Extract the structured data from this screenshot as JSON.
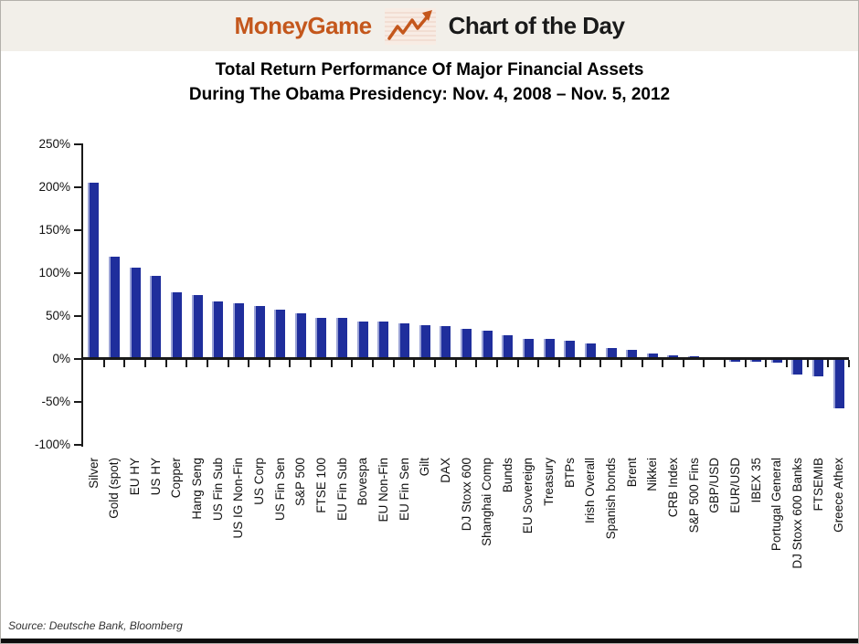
{
  "header": {
    "brand": "MoneyGame",
    "title": "Chart of the Day",
    "brand_color": "#c4571c",
    "icon": "line-chart-arrow-icon"
  },
  "title_line1": "Total Return Performance Of Major Financial Assets",
  "title_line2": "During The Obama Presidency: Nov. 4, 2008 – Nov. 5, 2012",
  "source": "Source: Deutsche Bank, Bloomberg",
  "chart_data": {
    "type": "bar",
    "title": "Total Return Performance Of Major Financial Assets During The Obama Presidency: Nov. 4, 2008 – Nov. 5, 2012",
    "xlabel": "",
    "ylabel": "",
    "ylim": [
      -100,
      250
    ],
    "grid": false,
    "legend": false,
    "bar_color": "#1f2e9c",
    "axis_color": "#1a1a1a",
    "y_ticks": [
      {
        "label": "250%",
        "value": 250
      },
      {
        "label": "200%",
        "value": 200
      },
      {
        "label": "150%",
        "value": 150
      },
      {
        "label": "100%",
        "value": 100
      },
      {
        "label": "50%",
        "value": 50
      },
      {
        "label": "0%",
        "value": 0
      },
      {
        "label": "-50%",
        "value": -50
      },
      {
        "label": "-100%",
        "value": -100
      }
    ],
    "categories": [
      "Silver",
      "Gold (spot)",
      "EU HY",
      "US HY",
      "Copper",
      "Hang Seng",
      "US Fin Sub",
      "US IG Non-Fin",
      "US Corp",
      "US Fin Sen",
      "S&P 500",
      "FTSE 100",
      "EU Fin Sub",
      "Bovespa",
      "EU Non-Fin",
      "EU Fin Sen",
      "Gilt",
      "DAX",
      "DJ Stoxx 600",
      "Shanghai Comp",
      "Bunds",
      "EU Sovereign",
      "Treasury",
      "BTPs",
      "Irish Overall",
      "Spanish bonds",
      "Brent",
      "Nikkei",
      "CRB Index",
      "S&P 500 Fins",
      "GBP/USD",
      "EUR/USD",
      "IBEX 35",
      "Portugal General",
      "DJ Stoxx 600 Banks",
      "FTSEMIB",
      "Greece Athex"
    ],
    "values": [
      205,
      119,
      106,
      97,
      78,
      75,
      67,
      65,
      62,
      57,
      53,
      48,
      48,
      44,
      44,
      41,
      39,
      38,
      35,
      33,
      28,
      23,
      23,
      21,
      18,
      13,
      11,
      6,
      4,
      3,
      -1,
      -3,
      -3,
      -4,
      -18,
      -20,
      -57
    ]
  }
}
